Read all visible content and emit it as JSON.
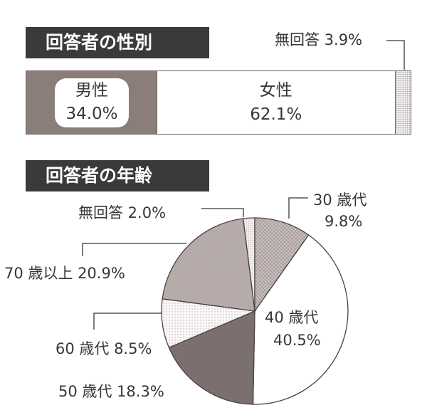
{
  "gender": {
    "title": "回答者の性別",
    "segments": [
      {
        "name": "男性",
        "pct_label": "34.0%",
        "value": 34.0,
        "color": "#8a7d7a"
      },
      {
        "name": "女性",
        "pct_label": "62.1%",
        "value": 62.1,
        "color": "#ffffff"
      },
      {
        "name": "無回答",
        "pct_label": "3.9%",
        "value": 3.9,
        "color": "#f4f1f1"
      }
    ],
    "na_label": "無回答 3.9%"
  },
  "age": {
    "title": "回答者の年齢",
    "labels": {
      "na": "無回答 2.0%",
      "s30_name": "30 歳代",
      "s30_pct": "9.8%",
      "s40_name": "40 歳代",
      "s40_pct": "40.5%",
      "s50": "50 歳代 18.3%",
      "s60": "60 歳代 8.5%",
      "s70": "70 歳以上 20.9%"
    }
  },
  "chart_data": [
    {
      "type": "bar",
      "title": "回答者の性別",
      "categories": [
        "男性",
        "女性",
        "無回答"
      ],
      "values": [
        34.0,
        62.1,
        3.9
      ],
      "stacked": true,
      "orientation": "horizontal"
    },
    {
      "type": "pie",
      "title": "回答者の年齢",
      "categories": [
        "無回答",
        "30 歳代",
        "40 歳代",
        "50 歳代",
        "60 歳代",
        "70 歳以上"
      ],
      "values": [
        2.0,
        9.8,
        40.5,
        18.3,
        8.5,
        20.9
      ],
      "colors": [
        "#f4f1f1",
        "#c2b8b6",
        "#ffffff",
        "#7b706d",
        "#f6f3f2",
        "#b6acaa"
      ]
    }
  ]
}
